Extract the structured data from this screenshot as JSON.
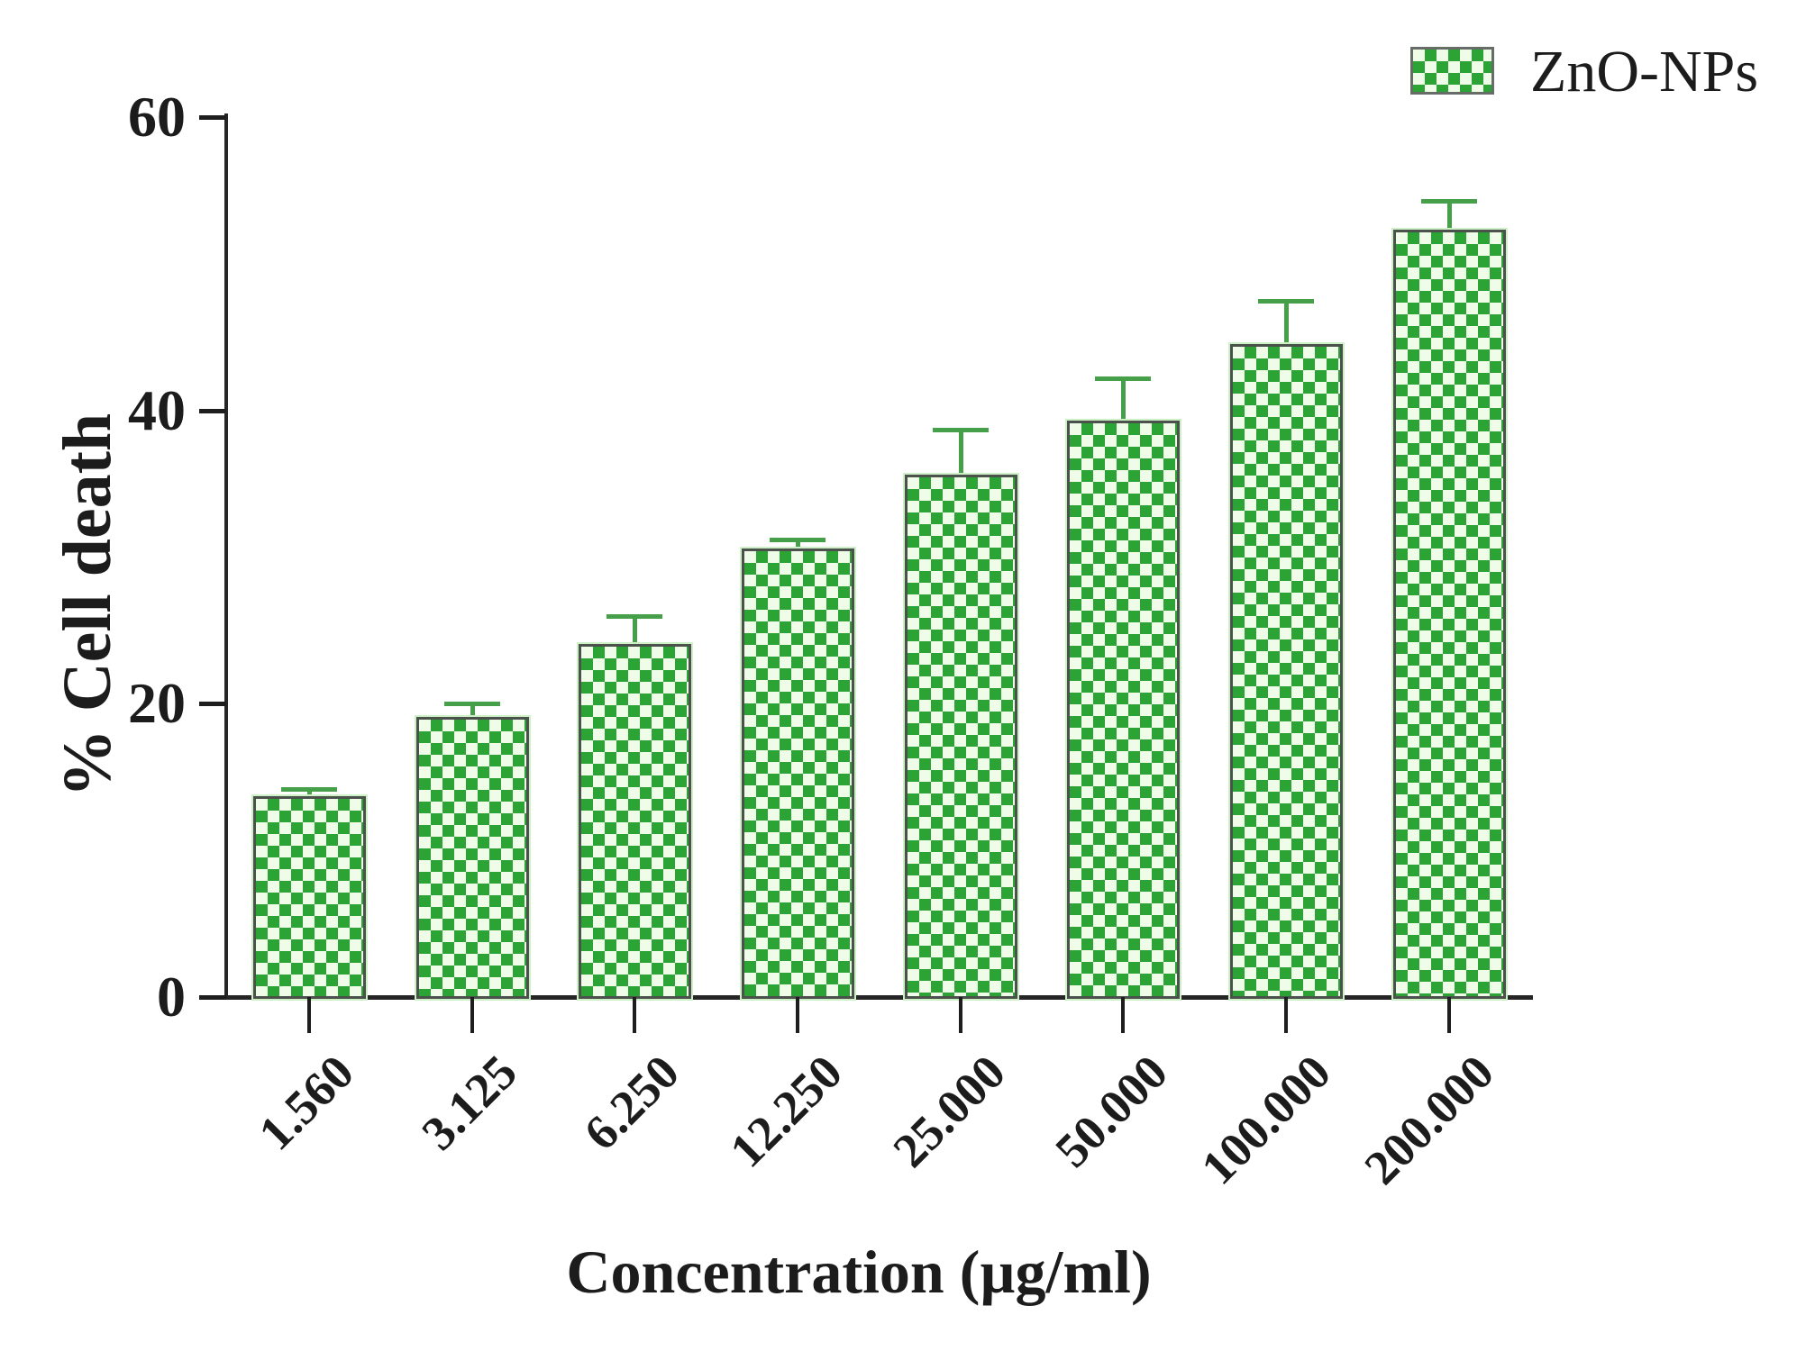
{
  "chart_data": {
    "type": "bar",
    "title": "",
    "xlabel": "Concentration (µg/ml)",
    "ylabel": "% Cell death",
    "categories": [
      "1.560",
      "3.125",
      "6.250",
      "12.250",
      "25.000",
      "50.000",
      "100.000",
      "200.000"
    ],
    "series": [
      {
        "name": "ZnO-NPs",
        "values": [
          13.7,
          19.1,
          24.1,
          30.6,
          35.6,
          39.3,
          44.5,
          52.3
        ],
        "errors_plus": [
          0.5,
          0.9,
          1.9,
          0.6,
          3.1,
          2.9,
          3.0,
          2.0
        ]
      }
    ],
    "ylim": [
      0,
      60
    ],
    "yticks": [
      0,
      20,
      40,
      60
    ],
    "grid": false,
    "legend": {
      "label": "ZnO-NPs",
      "position": "top-right"
    },
    "colors": {
      "bar_green": "#2ca335",
      "bar_light": "#eefce8",
      "bar_outline": "#4b514b",
      "error_bar": "#46a04a",
      "axis": "#262626",
      "text": "#1c1c1c"
    }
  }
}
